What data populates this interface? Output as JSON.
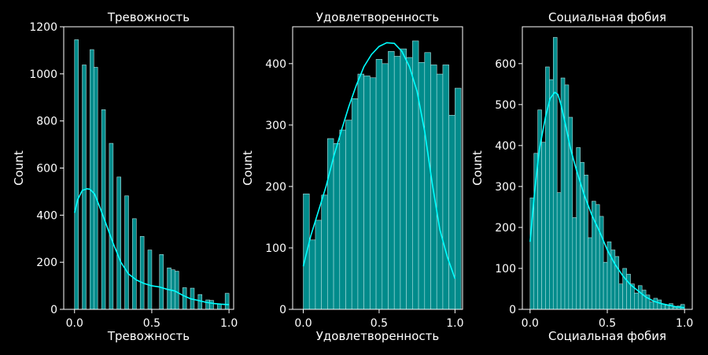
{
  "figure": {
    "background": "#000000",
    "axes_color": "#ffffff",
    "bar_fill": "#008b8b",
    "bar_edge": "#b0e0e0",
    "kde_color": "#00ffff"
  },
  "chart_data": [
    {
      "type": "bar",
      "title": "Тревожность",
      "xlabel": "Тревожность",
      "ylabel": "Count",
      "xlim": [
        -0.07,
        1.03
      ],
      "ylim": [
        0,
        1200
      ],
      "xticks": [
        0.0,
        0.5,
        1.0
      ],
      "xtick_labels": [
        "0.0",
        "0.5",
        "1.0"
      ],
      "yticks": [
        0,
        200,
        400,
        600,
        800,
        1000,
        1200
      ],
      "ytick_labels": [
        "0",
        "200",
        "400",
        "600",
        "800",
        "1000",
        "1200"
      ],
      "bins": [
        {
          "x0": 0.0,
          "x1": 0.025,
          "count": 1145
        },
        {
          "x0": 0.025,
          "x1": 0.05,
          "count": 0
        },
        {
          "x0": 0.05,
          "x1": 0.075,
          "count": 1038
        },
        {
          "x0": 0.075,
          "x1": 0.1,
          "count": 0
        },
        {
          "x0": 0.1,
          "x1": 0.125,
          "count": 1103
        },
        {
          "x0": 0.125,
          "x1": 0.15,
          "count": 1028
        },
        {
          "x0": 0.15,
          "x1": 0.175,
          "count": 0
        },
        {
          "x0": 0.175,
          "x1": 0.2,
          "count": 848
        },
        {
          "x0": 0.2,
          "x1": 0.225,
          "count": 0
        },
        {
          "x0": 0.225,
          "x1": 0.25,
          "count": 705
        },
        {
          "x0": 0.25,
          "x1": 0.275,
          "count": 0
        },
        {
          "x0": 0.275,
          "x1": 0.3,
          "count": 562
        },
        {
          "x0": 0.3,
          "x1": 0.325,
          "count": 0
        },
        {
          "x0": 0.325,
          "x1": 0.35,
          "count": 482
        },
        {
          "x0": 0.35,
          "x1": 0.375,
          "count": 0
        },
        {
          "x0": 0.375,
          "x1": 0.4,
          "count": 385
        },
        {
          "x0": 0.4,
          "x1": 0.425,
          "count": 0
        },
        {
          "x0": 0.425,
          "x1": 0.45,
          "count": 310
        },
        {
          "x0": 0.45,
          "x1": 0.475,
          "count": 0
        },
        {
          "x0": 0.475,
          "x1": 0.5,
          "count": 252
        },
        {
          "x0": 0.5,
          "x1": 0.525,
          "count": 0
        },
        {
          "x0": 0.525,
          "x1": 0.55,
          "count": 0
        },
        {
          "x0": 0.55,
          "x1": 0.575,
          "count": 233
        },
        {
          "x0": 0.575,
          "x1": 0.6,
          "count": 0
        },
        {
          "x0": 0.6,
          "x1": 0.625,
          "count": 176
        },
        {
          "x0": 0.625,
          "x1": 0.65,
          "count": 168
        },
        {
          "x0": 0.65,
          "x1": 0.675,
          "count": 162
        },
        {
          "x0": 0.675,
          "x1": 0.7,
          "count": 0
        },
        {
          "x0": 0.7,
          "x1": 0.725,
          "count": 92
        },
        {
          "x0": 0.725,
          "x1": 0.75,
          "count": 0
        },
        {
          "x0": 0.75,
          "x1": 0.775,
          "count": 90
        },
        {
          "x0": 0.775,
          "x1": 0.8,
          "count": 0
        },
        {
          "x0": 0.8,
          "x1": 0.825,
          "count": 63
        },
        {
          "x0": 0.825,
          "x1": 0.85,
          "count": 0
        },
        {
          "x0": 0.85,
          "x1": 0.875,
          "count": 40
        },
        {
          "x0": 0.875,
          "x1": 0.9,
          "count": 38
        },
        {
          "x0": 0.9,
          "x1": 0.925,
          "count": 0
        },
        {
          "x0": 0.925,
          "x1": 0.95,
          "count": 23
        },
        {
          "x0": 0.95,
          "x1": 0.975,
          "count": 0
        },
        {
          "x0": 0.975,
          "x1": 1.0,
          "count": 68
        }
      ],
      "kde": {
        "x": [
          0.0,
          0.02,
          0.05,
          0.08,
          0.1,
          0.13,
          0.16,
          0.2,
          0.25,
          0.3,
          0.35,
          0.4,
          0.45,
          0.5,
          0.55,
          0.6,
          0.65,
          0.7,
          0.75,
          0.8,
          0.85,
          0.9,
          0.95,
          1.0
        ],
        "y": [
          410,
          465,
          505,
          512,
          510,
          490,
          440,
          370,
          280,
          200,
          150,
          125,
          110,
          100,
          95,
          85,
          78,
          60,
          45,
          38,
          30,
          25,
          22,
          20
        ]
      }
    },
    {
      "type": "bar",
      "title": "Удовлетворенность",
      "xlabel": "Удовлетворенность",
      "ylabel": "Count",
      "xlim": [
        -0.07,
        1.05
      ],
      "ylim": [
        0,
        460
      ],
      "xticks": [
        0.0,
        0.5,
        1.0
      ],
      "xtick_labels": [
        "0.0",
        "0.5",
        "1.0"
      ],
      "yticks": [
        0,
        100,
        200,
        300,
        400
      ],
      "ytick_labels": [
        "0",
        "100",
        "200",
        "300",
        "400"
      ],
      "bins": [
        {
          "x0": 0.0,
          "x1": 0.04,
          "count": 188
        },
        {
          "x0": 0.04,
          "x1": 0.08,
          "count": 113
        },
        {
          "x0": 0.08,
          "x1": 0.12,
          "count": 145
        },
        {
          "x0": 0.12,
          "x1": 0.16,
          "count": 186
        },
        {
          "x0": 0.16,
          "x1": 0.2,
          "count": 278
        },
        {
          "x0": 0.2,
          "x1": 0.24,
          "count": 270
        },
        {
          "x0": 0.24,
          "x1": 0.28,
          "count": 292
        },
        {
          "x0": 0.28,
          "x1": 0.32,
          "count": 308
        },
        {
          "x0": 0.32,
          "x1": 0.36,
          "count": 343
        },
        {
          "x0": 0.36,
          "x1": 0.4,
          "count": 383
        },
        {
          "x0": 0.4,
          "x1": 0.44,
          "count": 380
        },
        {
          "x0": 0.44,
          "x1": 0.48,
          "count": 377
        },
        {
          "x0": 0.48,
          "x1": 0.52,
          "count": 407
        },
        {
          "x0": 0.52,
          "x1": 0.56,
          "count": 400
        },
        {
          "x0": 0.56,
          "x1": 0.6,
          "count": 420
        },
        {
          "x0": 0.6,
          "x1": 0.64,
          "count": 412
        },
        {
          "x0": 0.64,
          "x1": 0.68,
          "count": 424
        },
        {
          "x0": 0.68,
          "x1": 0.72,
          "count": 410
        },
        {
          "x0": 0.72,
          "x1": 0.76,
          "count": 437
        },
        {
          "x0": 0.76,
          "x1": 0.8,
          "count": 402
        },
        {
          "x0": 0.8,
          "x1": 0.84,
          "count": 418
        },
        {
          "x0": 0.84,
          "x1": 0.88,
          "count": 398
        },
        {
          "x0": 0.88,
          "x1": 0.92,
          "count": 383
        },
        {
          "x0": 0.92,
          "x1": 0.96,
          "count": 398
        },
        {
          "x0": 0.96,
          "x1": 1.0,
          "count": 316
        },
        {
          "x0": 1.0,
          "x1": 1.04,
          "count": 360
        }
      ],
      "bins_note_removed": true,
      "kde": {
        "x": [
          0.0,
          0.05,
          0.1,
          0.15,
          0.2,
          0.25,
          0.3,
          0.35,
          0.4,
          0.45,
          0.5,
          0.55,
          0.6,
          0.65,
          0.7,
          0.75,
          0.8,
          0.85,
          0.9,
          0.95,
          1.0
        ],
        "y": [
          70,
          120,
          160,
          200,
          248,
          290,
          330,
          365,
          395,
          415,
          428,
          434,
          433,
          420,
          395,
          355,
          290,
          205,
          130,
          85,
          50
        ]
      }
    },
    {
      "type": "bar",
      "title": "Социальная фобия",
      "xlabel": "Социальная фобия",
      "ylabel": "Count",
      "xlim": [
        -0.05,
        1.05
      ],
      "ylim": [
        0,
        690
      ],
      "xticks": [
        0.0,
        0.5,
        1.0
      ],
      "xtick_labels": [
        "0.0",
        "0.5",
        "1.0"
      ],
      "yticks": [
        0,
        100,
        200,
        300,
        400,
        500,
        600
      ],
      "ytick_labels": [
        "0",
        "100",
        "200",
        "300",
        "400",
        "500",
        "600"
      ],
      "bins": [
        {
          "x0": 0.0,
          "x1": 0.025,
          "count": 272
        },
        {
          "x0": 0.025,
          "x1": 0.05,
          "count": 381
        },
        {
          "x0": 0.05,
          "x1": 0.075,
          "count": 487
        },
        {
          "x0": 0.075,
          "x1": 0.1,
          "count": 408
        },
        {
          "x0": 0.1,
          "x1": 0.125,
          "count": 592
        },
        {
          "x0": 0.125,
          "x1": 0.15,
          "count": 561
        },
        {
          "x0": 0.15,
          "x1": 0.175,
          "count": 664
        },
        {
          "x0": 0.175,
          "x1": 0.2,
          "count": 285
        },
        {
          "x0": 0.2,
          "x1": 0.225,
          "count": 565
        },
        {
          "x0": 0.225,
          "x1": 0.25,
          "count": 548
        },
        {
          "x0": 0.25,
          "x1": 0.275,
          "count": 469
        },
        {
          "x0": 0.275,
          "x1": 0.3,
          "count": 224
        },
        {
          "x0": 0.3,
          "x1": 0.325,
          "count": 395
        },
        {
          "x0": 0.325,
          "x1": 0.35,
          "count": 359
        },
        {
          "x0": 0.35,
          "x1": 0.375,
          "count": 328
        },
        {
          "x0": 0.375,
          "x1": 0.4,
          "count": 175
        },
        {
          "x0": 0.4,
          "x1": 0.425,
          "count": 264
        },
        {
          "x0": 0.425,
          "x1": 0.45,
          "count": 256
        },
        {
          "x0": 0.45,
          "x1": 0.475,
          "count": 227
        },
        {
          "x0": 0.475,
          "x1": 0.5,
          "count": 115
        },
        {
          "x0": 0.5,
          "x1": 0.525,
          "count": 165
        },
        {
          "x0": 0.525,
          "x1": 0.55,
          "count": 145
        },
        {
          "x0": 0.55,
          "x1": 0.575,
          "count": 129
        },
        {
          "x0": 0.575,
          "x1": 0.6,
          "count": 62
        },
        {
          "x0": 0.6,
          "x1": 0.625,
          "count": 100
        },
        {
          "x0": 0.625,
          "x1": 0.65,
          "count": 86
        },
        {
          "x0": 0.65,
          "x1": 0.675,
          "count": 62
        },
        {
          "x0": 0.675,
          "x1": 0.7,
          "count": 40
        },
        {
          "x0": 0.7,
          "x1": 0.725,
          "count": 58
        },
        {
          "x0": 0.725,
          "x1": 0.75,
          "count": 47
        },
        {
          "x0": 0.75,
          "x1": 0.775,
          "count": 35
        },
        {
          "x0": 0.775,
          "x1": 0.8,
          "count": 18
        },
        {
          "x0": 0.8,
          "x1": 0.825,
          "count": 27
        },
        {
          "x0": 0.825,
          "x1": 0.85,
          "count": 23
        },
        {
          "x0": 0.85,
          "x1": 0.875,
          "count": 13
        },
        {
          "x0": 0.875,
          "x1": 0.9,
          "count": 10
        },
        {
          "x0": 0.9,
          "x1": 0.925,
          "count": 14
        },
        {
          "x0": 0.925,
          "x1": 0.95,
          "count": 5
        },
        {
          "x0": 0.95,
          "x1": 0.975,
          "count": 8
        },
        {
          "x0": 0.975,
          "x1": 1.0,
          "count": 12
        }
      ],
      "kde": {
        "x": [
          0.0,
          0.03,
          0.06,
          0.1,
          0.13,
          0.16,
          0.18,
          0.2,
          0.23,
          0.26,
          0.3,
          0.35,
          0.4,
          0.45,
          0.5,
          0.55,
          0.6,
          0.65,
          0.7,
          0.75,
          0.8,
          0.85,
          0.9,
          0.95,
          1.0
        ],
        "y": [
          165,
          290,
          390,
          470,
          515,
          530,
          525,
          500,
          450,
          395,
          340,
          280,
          230,
          190,
          145,
          110,
          82,
          60,
          45,
          30,
          20,
          14,
          10,
          6,
          4
        ]
      }
    }
  ]
}
